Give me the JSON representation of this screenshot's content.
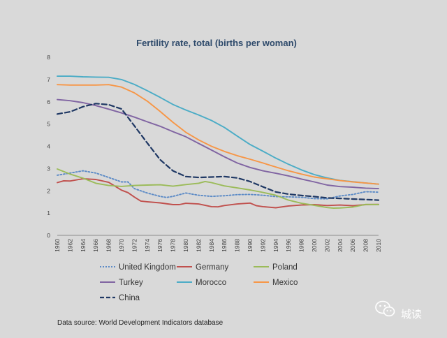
{
  "chart_data": {
    "type": "line",
    "title": "Fertility rate, total (births per woman)",
    "xlabel": "",
    "ylabel": "",
    "ylim": [
      0,
      8
    ],
    "yticks": [
      0,
      1,
      2,
      3,
      4,
      5,
      6,
      7,
      8
    ],
    "xlim": [
      1960,
      2010
    ],
    "xticks": [
      1960,
      1962,
      1964,
      1966,
      1968,
      1970,
      1972,
      1974,
      1976,
      1978,
      1980,
      1982,
      1984,
      1986,
      1988,
      1990,
      1992,
      1994,
      1996,
      1998,
      2000,
      2002,
      2004,
      2006,
      2008,
      2010
    ],
    "grid": false,
    "legend": "bottom",
    "series": [
      {
        "name": "United Kingdom",
        "color": "#5b8ac6",
        "dash": "dotted",
        "points": [
          [
            1960,
            2.7
          ],
          [
            1962,
            2.8
          ],
          [
            1964,
            2.9
          ],
          [
            1966,
            2.8
          ],
          [
            1968,
            2.6
          ],
          [
            1970,
            2.4
          ],
          [
            1971,
            2.4
          ],
          [
            1972,
            2.1
          ],
          [
            1974,
            1.9
          ],
          [
            1976,
            1.75
          ],
          [
            1977,
            1.7
          ],
          [
            1978,
            1.75
          ],
          [
            1980,
            1.9
          ],
          [
            1982,
            1.8
          ],
          [
            1984,
            1.75
          ],
          [
            1986,
            1.78
          ],
          [
            1988,
            1.83
          ],
          [
            1990,
            1.84
          ],
          [
            1992,
            1.8
          ],
          [
            1994,
            1.74
          ],
          [
            1996,
            1.73
          ],
          [
            1998,
            1.71
          ],
          [
            2000,
            1.65
          ],
          [
            2002,
            1.64
          ],
          [
            2004,
            1.77
          ],
          [
            2006,
            1.84
          ],
          [
            2008,
            1.96
          ],
          [
            2010,
            1.94
          ]
        ]
      },
      {
        "name": "Germany",
        "color": "#c0504d",
        "dash": "solid",
        "points": [
          [
            1960,
            2.37
          ],
          [
            1961,
            2.45
          ],
          [
            1962,
            2.44
          ],
          [
            1964,
            2.54
          ],
          [
            1966,
            2.51
          ],
          [
            1968,
            2.38
          ],
          [
            1970,
            2.03
          ],
          [
            1971,
            1.92
          ],
          [
            1972,
            1.72
          ],
          [
            1973,
            1.54
          ],
          [
            1974,
            1.51
          ],
          [
            1976,
            1.46
          ],
          [
            1978,
            1.38
          ],
          [
            1979,
            1.38
          ],
          [
            1980,
            1.44
          ],
          [
            1982,
            1.41
          ],
          [
            1984,
            1.29
          ],
          [
            1985,
            1.28
          ],
          [
            1986,
            1.34
          ],
          [
            1988,
            1.41
          ],
          [
            1990,
            1.45
          ],
          [
            1991,
            1.33
          ],
          [
            1992,
            1.29
          ],
          [
            1994,
            1.24
          ],
          [
            1996,
            1.32
          ],
          [
            1998,
            1.36
          ],
          [
            2000,
            1.38
          ],
          [
            2002,
            1.34
          ],
          [
            2004,
            1.36
          ],
          [
            2006,
            1.33
          ],
          [
            2008,
            1.38
          ],
          [
            2010,
            1.39
          ]
        ]
      },
      {
        "name": "Poland",
        "color": "#9bbb59",
        "dash": "solid",
        "points": [
          [
            1960,
            2.98
          ],
          [
            1962,
            2.75
          ],
          [
            1964,
            2.57
          ],
          [
            1966,
            2.34
          ],
          [
            1968,
            2.24
          ],
          [
            1970,
            2.2
          ],
          [
            1972,
            2.24
          ],
          [
            1974,
            2.26
          ],
          [
            1976,
            2.27
          ],
          [
            1978,
            2.21
          ],
          [
            1980,
            2.28
          ],
          [
            1982,
            2.34
          ],
          [
            1983,
            2.42
          ],
          [
            1984,
            2.37
          ],
          [
            1986,
            2.22
          ],
          [
            1988,
            2.13
          ],
          [
            1990,
            2.04
          ],
          [
            1992,
            1.93
          ],
          [
            1994,
            1.8
          ],
          [
            1996,
            1.58
          ],
          [
            1998,
            1.44
          ],
          [
            2000,
            1.35
          ],
          [
            2002,
            1.25
          ],
          [
            2003,
            1.22
          ],
          [
            2004,
            1.23
          ],
          [
            2006,
            1.27
          ],
          [
            2008,
            1.39
          ],
          [
            2010,
            1.38
          ]
        ]
      },
      {
        "name": "Turkey",
        "color": "#8064a2",
        "dash": "solid",
        "points": [
          [
            1960,
            6.1
          ],
          [
            1962,
            6.05
          ],
          [
            1964,
            5.96
          ],
          [
            1966,
            5.83
          ],
          [
            1968,
            5.67
          ],
          [
            1970,
            5.5
          ],
          [
            1972,
            5.31
          ],
          [
            1974,
            5.1
          ],
          [
            1976,
            4.9
          ],
          [
            1978,
            4.66
          ],
          [
            1980,
            4.43
          ],
          [
            1982,
            4.13
          ],
          [
            1984,
            3.83
          ],
          [
            1986,
            3.53
          ],
          [
            1988,
            3.25
          ],
          [
            1990,
            3.05
          ],
          [
            1992,
            2.9
          ],
          [
            1994,
            2.79
          ],
          [
            1996,
            2.67
          ],
          [
            1998,
            2.53
          ],
          [
            2000,
            2.4
          ],
          [
            2002,
            2.26
          ],
          [
            2004,
            2.19
          ],
          [
            2006,
            2.16
          ],
          [
            2008,
            2.12
          ],
          [
            2010,
            2.1
          ]
        ]
      },
      {
        "name": "Morocco",
        "color": "#4bacc6",
        "dash": "solid",
        "points": [
          [
            1960,
            7.15
          ],
          [
            1962,
            7.15
          ],
          [
            1964,
            7.12
          ],
          [
            1966,
            7.11
          ],
          [
            1968,
            7.1
          ],
          [
            1970,
            7.0
          ],
          [
            1972,
            6.78
          ],
          [
            1974,
            6.5
          ],
          [
            1976,
            6.2
          ],
          [
            1978,
            5.88
          ],
          [
            1980,
            5.63
          ],
          [
            1982,
            5.41
          ],
          [
            1984,
            5.16
          ],
          [
            1986,
            4.85
          ],
          [
            1988,
            4.46
          ],
          [
            1990,
            4.08
          ],
          [
            1992,
            3.78
          ],
          [
            1994,
            3.47
          ],
          [
            1996,
            3.19
          ],
          [
            1998,
            2.94
          ],
          [
            2000,
            2.73
          ],
          [
            2002,
            2.58
          ],
          [
            2004,
            2.47
          ],
          [
            2006,
            2.41
          ],
          [
            2008,
            2.35
          ],
          [
            2010,
            2.3
          ]
        ]
      },
      {
        "name": "Mexico",
        "color": "#f79646",
        "dash": "solid",
        "points": [
          [
            1960,
            6.77
          ],
          [
            1962,
            6.75
          ],
          [
            1964,
            6.75
          ],
          [
            1966,
            6.75
          ],
          [
            1968,
            6.77
          ],
          [
            1970,
            6.66
          ],
          [
            1972,
            6.4
          ],
          [
            1974,
            6.03
          ],
          [
            1976,
            5.57
          ],
          [
            1978,
            5.08
          ],
          [
            1980,
            4.63
          ],
          [
            1982,
            4.29
          ],
          [
            1984,
            4.0
          ],
          [
            1986,
            3.77
          ],
          [
            1988,
            3.58
          ],
          [
            1990,
            3.42
          ],
          [
            1992,
            3.25
          ],
          [
            1994,
            3.07
          ],
          [
            1996,
            2.9
          ],
          [
            1998,
            2.75
          ],
          [
            2000,
            2.62
          ],
          [
            2002,
            2.54
          ],
          [
            2004,
            2.46
          ],
          [
            2006,
            2.4
          ],
          [
            2008,
            2.35
          ],
          [
            2010,
            2.3
          ]
        ]
      },
      {
        "name": "China",
        "color": "#1f3864",
        "dash": "dashed",
        "points": [
          [
            1960,
            5.45
          ],
          [
            1962,
            5.55
          ],
          [
            1964,
            5.78
          ],
          [
            1966,
            5.92
          ],
          [
            1968,
            5.87
          ],
          [
            1970,
            5.68
          ],
          [
            1972,
            4.92
          ],
          [
            1974,
            4.15
          ],
          [
            1976,
            3.4
          ],
          [
            1978,
            2.9
          ],
          [
            1980,
            2.64
          ],
          [
            1982,
            2.6
          ],
          [
            1984,
            2.62
          ],
          [
            1986,
            2.64
          ],
          [
            1988,
            2.58
          ],
          [
            1990,
            2.42
          ],
          [
            1992,
            2.18
          ],
          [
            1994,
            1.95
          ],
          [
            1996,
            1.85
          ],
          [
            1998,
            1.79
          ],
          [
            2000,
            1.74
          ],
          [
            2002,
            1.68
          ],
          [
            2004,
            1.66
          ],
          [
            2006,
            1.63
          ],
          [
            2008,
            1.61
          ],
          [
            2010,
            1.58
          ]
        ]
      }
    ]
  },
  "footer": {
    "source": "Data source: World Development Indicators database",
    "watermark_text": "城读",
    "watermark_icon": "wechat-icon"
  }
}
